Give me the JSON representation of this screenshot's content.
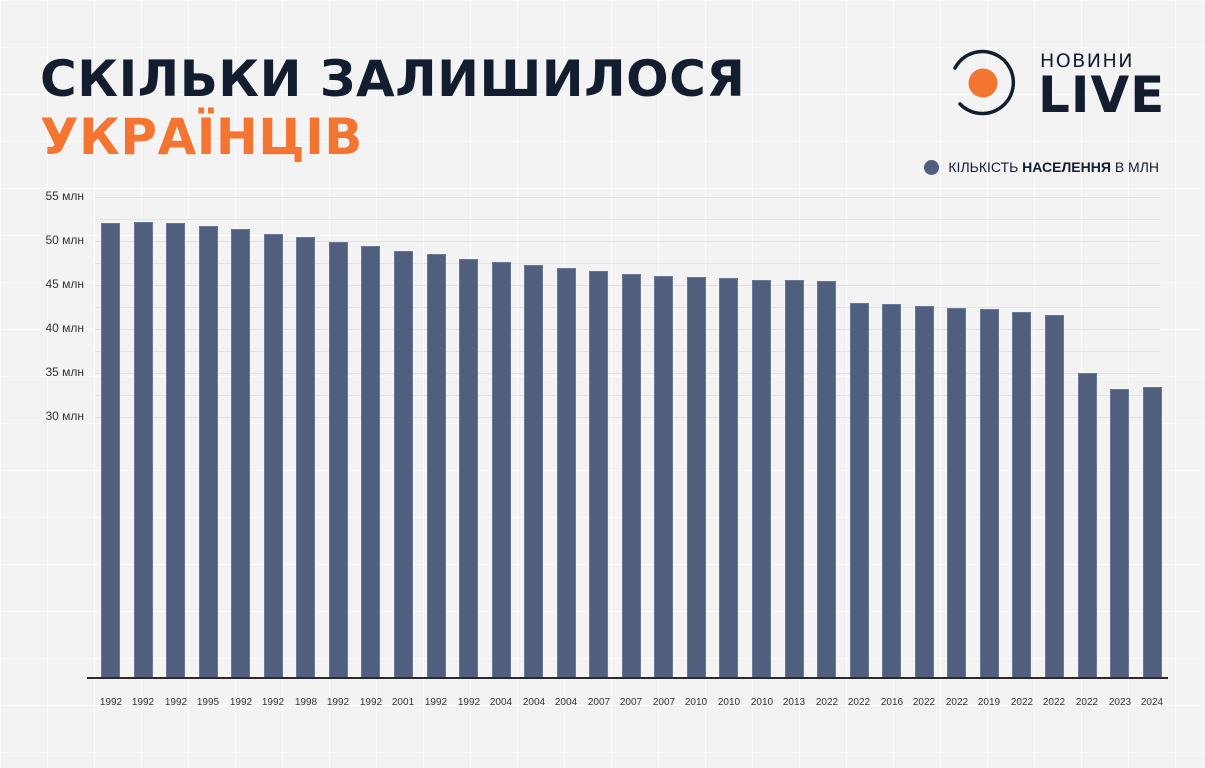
{
  "header": {
    "title_line1": "СКІЛЬКИ ЗАЛИШИЛОСЯ",
    "title_line2": "УКРАЇНЦІВ"
  },
  "logo": {
    "small_text": "НОВИНИ",
    "big_text": "LIVE",
    "accent_color": "#f47432"
  },
  "legend": {
    "prefix": "КІЛЬКІСТЬ",
    "bold": "НАСЕЛЕННЯ",
    "suffix": "В МЛН",
    "color": "#4f5f7d"
  },
  "colors": {
    "bar": "#4f5f7d",
    "title_dark": "#141d2f",
    "title_accent": "#f47432",
    "background": "#f3f3f3"
  },
  "chart_data": {
    "type": "bar",
    "title": "Скільки залишилося українців",
    "xlabel": "",
    "ylabel": "",
    "legend": [
      "Кількість населення в млн"
    ],
    "legend_position": "top-right",
    "grid": true,
    "yticks": [
      "55 млн",
      "50 млн",
      "45 млн",
      "40 млн",
      "35 млн",
      "30 млн"
    ],
    "ytick_values": [
      55,
      50,
      45,
      40,
      35,
      30
    ],
    "ylim": [
      0,
      55
    ],
    "categories": [
      "1992",
      "1992",
      "1992",
      "1995",
      "1992",
      "1992",
      "1998",
      "1992",
      "1992",
      "2001",
      "1992",
      "1992",
      "2004",
      "2004",
      "2004",
      "2007",
      "2007",
      "2007",
      "2010",
      "2010",
      "2010",
      "2013",
      "2022",
      "2022",
      "2016",
      "2022",
      "2022",
      "2019",
      "2022",
      "2022",
      "2022",
      "2023",
      "2024"
    ],
    "series": [
      {
        "name": "Кількість населення в млн",
        "values": [
          52.0,
          52.2,
          52.0,
          51.7,
          51.4,
          50.8,
          50.5,
          49.9,
          49.4,
          48.9,
          48.5,
          47.9,
          47.6,
          47.3,
          46.9,
          46.6,
          46.3,
          46.0,
          45.9,
          45.8,
          45.6,
          45.6,
          45.4,
          43.0,
          42.8,
          42.6,
          42.4,
          42.3,
          41.9,
          41.6,
          35.0,
          33.2,
          33.4
        ]
      }
    ]
  }
}
